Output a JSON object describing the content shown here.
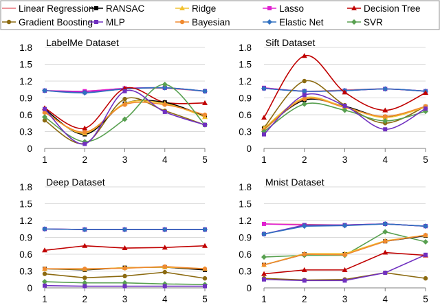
{
  "legend": [
    {
      "key": "linear",
      "label": "Linear Regression",
      "color": "#E8707A",
      "marker": "none"
    },
    {
      "key": "ransac",
      "label": "RANSAC",
      "color": "#000000",
      "marker": "square"
    },
    {
      "key": "ridge",
      "label": "Ridge",
      "color": "#F2C230",
      "marker": "triangle"
    },
    {
      "key": "lasso",
      "label": "Lasso",
      "color": "#E020D0",
      "marker": "square"
    },
    {
      "key": "tree",
      "label": "Decision Tree",
      "color": "#C00000",
      "marker": "triangle"
    },
    {
      "key": "gb",
      "label": "Gradient Boosting",
      "color": "#8B6A10",
      "marker": "circle"
    },
    {
      "key": "mlp",
      "label": "MLP",
      "color": "#7030C0",
      "marker": "square"
    },
    {
      "key": "bayes",
      "label": "Bayesian",
      "color": "#F08A30",
      "marker": "circle"
    },
    {
      "key": "enet",
      "label": "Elastic Net",
      "color": "#3070C0",
      "marker": "diamond"
    },
    {
      "key": "svr",
      "label": "SVR",
      "color": "#58A050",
      "marker": "diamond"
    }
  ],
  "chart_data": [
    {
      "type": "line",
      "title": "LabelMe Dataset",
      "categories": [
        "1",
        "2",
        "3",
        "4",
        "5"
      ],
      "ylim": [
        0,
        1.8
      ],
      "yticks": [
        "0",
        "0.3",
        "0.6",
        "0.9",
        "1.2",
        "1.5",
        "1.8"
      ],
      "smooth": true,
      "series": [
        {
          "key": "linear",
          "values": [
            1.03,
            1.02,
            1.07,
            1.07,
            1.02
          ]
        },
        {
          "key": "lasso",
          "values": [
            1.03,
            1.02,
            1.07,
            1.08,
            1.02
          ]
        },
        {
          "key": "mlp",
          "values": [
            1.03,
            1.0,
            1.06,
            1.08,
            1.02
          ]
        },
        {
          "key": "enet",
          "values": [
            1.03,
            0.99,
            1.06,
            1.08,
            1.02
          ]
        },
        {
          "key": "tree",
          "values": [
            0.72,
            0.36,
            1.07,
            0.82,
            0.81
          ]
        },
        {
          "key": "gb",
          "values": [
            0.5,
            0.09,
            0.88,
            0.67,
            0.42
          ]
        },
        {
          "key": "ransac",
          "values": [
            0.7,
            0.25,
            0.8,
            0.82,
            0.57
          ]
        },
        {
          "key": "ridge",
          "values": [
            0.66,
            0.27,
            0.8,
            0.8,
            0.56
          ]
        },
        {
          "key": "bayes",
          "values": [
            0.64,
            0.29,
            0.78,
            0.78,
            0.6
          ]
        },
        {
          "key": "svr",
          "values": [
            0.56,
            0.12,
            0.52,
            1.14,
            0.42
          ]
        },
        {
          "key": "mlp2",
          "color": "#7030C0",
          "values": [
            0.7,
            0.08,
            1.02,
            0.65,
            0.42
          ]
        }
      ]
    },
    {
      "type": "line",
      "title": "Sift Dataset",
      "categories": [
        "1",
        "2",
        "3",
        "4",
        "5"
      ],
      "ylim": [
        0,
        1.8
      ],
      "yticks": [
        "0",
        "0.3",
        "0.6",
        "0.9",
        "1.2",
        "1.5",
        "1.8"
      ],
      "smooth": true,
      "series": [
        {
          "key": "linear",
          "values": [
            1.08,
            1.02,
            1.04,
            1.06,
            1.02
          ]
        },
        {
          "key": "lasso",
          "values": [
            1.08,
            1.02,
            1.03,
            1.06,
            1.02
          ]
        },
        {
          "key": "mlp",
          "values": [
            1.07,
            1.02,
            1.03,
            1.06,
            1.02
          ]
        },
        {
          "key": "enet",
          "values": [
            1.07,
            1.02,
            1.03,
            1.06,
            1.02
          ]
        },
        {
          "key": "tree",
          "values": [
            0.55,
            1.65,
            1.0,
            0.68,
            0.99
          ]
        },
        {
          "key": "gb",
          "values": [
            0.37,
            1.2,
            0.77,
            0.45,
            0.75
          ]
        },
        {
          "key": "ransac",
          "values": [
            0.35,
            0.86,
            0.75,
            0.56,
            0.74
          ]
        },
        {
          "key": "ridge",
          "values": [
            0.36,
            0.9,
            0.74,
            0.55,
            0.74
          ]
        },
        {
          "key": "bayes",
          "values": [
            0.33,
            0.88,
            0.73,
            0.57,
            0.75
          ]
        },
        {
          "key": "svr",
          "values": [
            0.3,
            0.79,
            0.68,
            0.49,
            0.66
          ]
        },
        {
          "key": "mlp2",
          "color": "#7030C0",
          "values": [
            0.25,
            0.95,
            0.76,
            0.34,
            0.71
          ]
        }
      ]
    },
    {
      "type": "line",
      "title": "Deep Dataset",
      "categories": [
        "1",
        "2",
        "3",
        "4",
        "5"
      ],
      "ylim": [
        0,
        1.8
      ],
      "yticks": [
        "0",
        "0.3",
        "0.6",
        "0.9",
        "1.2",
        "1.5",
        "1.8"
      ],
      "smooth": false,
      "series": [
        {
          "key": "linear",
          "values": [
            1.05,
            1.04,
            1.04,
            1.04,
            1.04
          ]
        },
        {
          "key": "lasso",
          "values": [
            1.05,
            1.04,
            1.04,
            1.04,
            1.04
          ]
        },
        {
          "key": "mlp",
          "values": [
            1.05,
            1.04,
            1.04,
            1.04,
            1.04
          ]
        },
        {
          "key": "enet",
          "values": [
            1.05,
            1.04,
            1.04,
            1.04,
            1.04
          ]
        },
        {
          "key": "tree",
          "values": [
            0.67,
            0.75,
            0.71,
            0.72,
            0.75
          ]
        },
        {
          "key": "ransac",
          "values": [
            0.34,
            0.32,
            0.36,
            0.37,
            0.32
          ]
        },
        {
          "key": "ridge",
          "values": [
            0.34,
            0.33,
            0.36,
            0.37,
            0.34
          ]
        },
        {
          "key": "bayes",
          "values": [
            0.34,
            0.34,
            0.35,
            0.38,
            0.34
          ]
        },
        {
          "key": "gb",
          "values": [
            0.25,
            0.18,
            0.21,
            0.28,
            0.17
          ]
        },
        {
          "key": "svr",
          "values": [
            0.11,
            0.09,
            0.09,
            0.07,
            0.06
          ]
        },
        {
          "key": "mlp2",
          "color": "#7030C0",
          "values": [
            0.04,
            0.03,
            0.03,
            0.03,
            0.03
          ]
        }
      ]
    },
    {
      "type": "line",
      "title": "Mnist Dataset",
      "categories": [
        "1",
        "2",
        "3",
        "4",
        "5"
      ],
      "ylim": [
        0,
        1.8
      ],
      "yticks": [
        "0",
        "0.3",
        "0.6",
        "0.9",
        "1.2",
        "1.5",
        "1.8"
      ],
      "smooth": false,
      "series": [
        {
          "key": "linear",
          "values": [
            1.14,
            1.13,
            1.12,
            1.14,
            1.1
          ]
        },
        {
          "key": "lasso",
          "values": [
            1.14,
            1.12,
            1.12,
            1.14,
            1.1
          ]
        },
        {
          "key": "mlp",
          "values": [
            0.96,
            1.12,
            1.12,
            1.14,
            1.1
          ]
        },
        {
          "key": "enet",
          "values": [
            0.96,
            1.1,
            1.11,
            1.14,
            1.1
          ]
        },
        {
          "key": "svr",
          "values": [
            0.55,
            0.58,
            0.58,
            1.0,
            0.82
          ]
        },
        {
          "key": "ransac",
          "values": [
            0.41,
            0.6,
            0.6,
            0.83,
            0.93
          ]
        },
        {
          "key": "ridge",
          "values": [
            0.41,
            0.61,
            0.61,
            0.84,
            0.94
          ]
        },
        {
          "key": "bayes",
          "values": [
            0.41,
            0.6,
            0.59,
            0.83,
            0.94
          ]
        },
        {
          "key": "tree",
          "values": [
            0.25,
            0.32,
            0.32,
            0.63,
            0.58
          ]
        },
        {
          "key": "gb",
          "values": [
            0.17,
            0.14,
            0.15,
            0.27,
            0.17
          ]
        },
        {
          "key": "mlp2",
          "color": "#7030C0",
          "values": [
            0.15,
            0.13,
            0.13,
            0.27,
            0.59
          ]
        }
      ]
    }
  ]
}
